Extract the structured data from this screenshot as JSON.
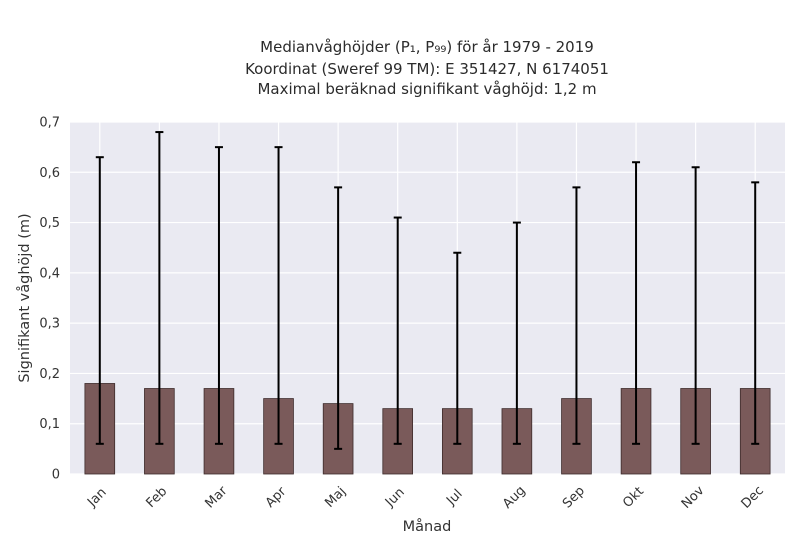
{
  "chart_data": {
    "type": "bar",
    "title_lines": [
      "Medianvåghöjder (P₁, P₉₉) för år 1979 - 2019",
      "Koordinat (Sweref 99 TM): E 351427, N 6174051",
      "Maximal beräknad signifikant våghöjd: 1,2 m"
    ],
    "xlabel": "Månad",
    "ylabel": "Signifikant våghöjd (m)",
    "categories": [
      "Jan",
      "Feb",
      "Mar",
      "Apr",
      "Maj",
      "Jun",
      "Jul",
      "Aug",
      "Sep",
      "Okt",
      "Nov",
      "Dec"
    ],
    "values": [
      0.18,
      0.17,
      0.17,
      0.15,
      0.14,
      0.13,
      0.13,
      0.13,
      0.15,
      0.17,
      0.17,
      0.17
    ],
    "error_low": [
      0.06,
      0.06,
      0.06,
      0.06,
      0.05,
      0.06,
      0.06,
      0.06,
      0.06,
      0.06,
      0.06,
      0.06
    ],
    "error_high": [
      0.63,
      0.68,
      0.65,
      0.65,
      0.57,
      0.51,
      0.44,
      0.5,
      0.57,
      0.62,
      0.61,
      0.58
    ],
    "ylim": [
      0,
      0.7
    ],
    "yticks": [
      0,
      0.1,
      0.2,
      0.3,
      0.4,
      0.5,
      0.6,
      0.7
    ],
    "ytick_labels": [
      "0",
      "0,1",
      "0,2",
      "0,3",
      "0,4",
      "0,5",
      "0,6",
      "0,7"
    ],
    "grid": true,
    "colors": {
      "bar": "#7a5a5a",
      "bar_edge": "#3d2b2b",
      "background": "#eaeaf2",
      "grid": "#ffffff",
      "error": "#000000"
    }
  }
}
